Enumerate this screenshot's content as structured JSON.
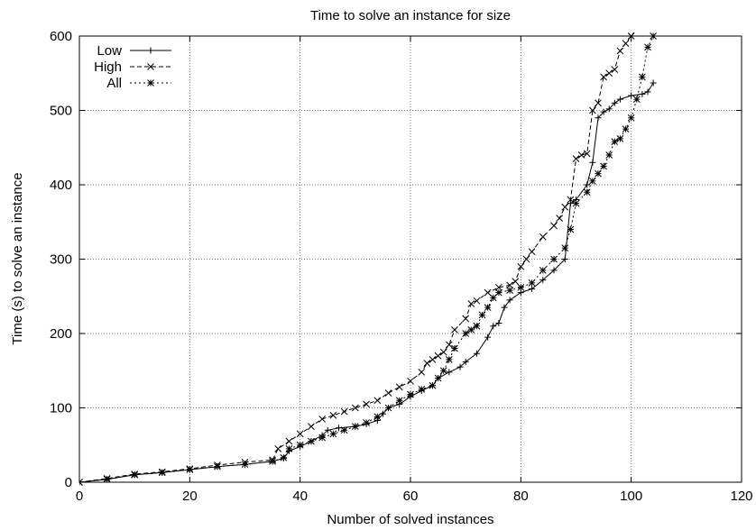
{
  "chart_data": {
    "type": "line",
    "title": "Time to solve an instance for size",
    "xlabel": "Number of solved instances",
    "ylabel": "Time (s) to solve an instance",
    "xlim": [
      0,
      120
    ],
    "ylim": [
      0,
      600
    ],
    "xticks": [
      0,
      20,
      40,
      60,
      80,
      100,
      120
    ],
    "yticks": [
      0,
      100,
      200,
      300,
      400,
      500,
      600
    ],
    "grid": true,
    "legend_position": "top-left",
    "series": [
      {
        "name": "Low",
        "marker": "plus",
        "dash": "solid",
        "points": [
          [
            0,
            0
          ],
          [
            5,
            4
          ],
          [
            10,
            10
          ],
          [
            15,
            13
          ],
          [
            20,
            17
          ],
          [
            25,
            21
          ],
          [
            30,
            24
          ],
          [
            35,
            28
          ],
          [
            37,
            32
          ],
          [
            38,
            42
          ],
          [
            40,
            48
          ],
          [
            42,
            55
          ],
          [
            44,
            63
          ],
          [
            45,
            70
          ],
          [
            47,
            73
          ],
          [
            50,
            75
          ],
          [
            52,
            78
          ],
          [
            54,
            83
          ],
          [
            55,
            92
          ],
          [
            56,
            100
          ],
          [
            58,
            105
          ],
          [
            60,
            115
          ],
          [
            62,
            123
          ],
          [
            64,
            130
          ],
          [
            65,
            140
          ],
          [
            67,
            148
          ],
          [
            69,
            155
          ],
          [
            70,
            162
          ],
          [
            72,
            173
          ],
          [
            74,
            195
          ],
          [
            75,
            210
          ],
          [
            76,
            214
          ],
          [
            77,
            235
          ],
          [
            78,
            245
          ],
          [
            80,
            255
          ],
          [
            82,
            260
          ],
          [
            84,
            272
          ],
          [
            86,
            285
          ],
          [
            88,
            300
          ],
          [
            89,
            375
          ],
          [
            90,
            380
          ],
          [
            92,
            400
          ],
          [
            93,
            430
          ],
          [
            94,
            490
          ],
          [
            95,
            498
          ],
          [
            96,
            502
          ],
          [
            97,
            510
          ],
          [
            98,
            515
          ],
          [
            100,
            520
          ],
          [
            102,
            522
          ],
          [
            103,
            525
          ],
          [
            104,
            537
          ]
        ]
      },
      {
        "name": "High",
        "marker": "cross",
        "dash": "dashed",
        "points": [
          [
            0,
            0
          ],
          [
            5,
            5
          ],
          [
            10,
            11
          ],
          [
            15,
            14
          ],
          [
            20,
            18
          ],
          [
            25,
            23
          ],
          [
            30,
            27
          ],
          [
            35,
            30
          ],
          [
            36,
            45
          ],
          [
            38,
            55
          ],
          [
            40,
            65
          ],
          [
            42,
            75
          ],
          [
            44,
            85
          ],
          [
            46,
            90
          ],
          [
            48,
            95
          ],
          [
            50,
            100
          ],
          [
            52,
            105
          ],
          [
            54,
            110
          ],
          [
            56,
            120
          ],
          [
            58,
            128
          ],
          [
            60,
            136
          ],
          [
            62,
            148
          ],
          [
            63,
            160
          ],
          [
            64,
            165
          ],
          [
            65,
            170
          ],
          [
            66,
            175
          ],
          [
            67,
            185
          ],
          [
            68,
            205
          ],
          [
            70,
            220
          ],
          [
            71,
            240
          ],
          [
            72,
            244
          ],
          [
            74,
            255
          ],
          [
            76,
            262
          ],
          [
            78,
            265
          ],
          [
            79,
            270
          ],
          [
            80,
            290
          ],
          [
            81,
            300
          ],
          [
            82,
            310
          ],
          [
            84,
            330
          ],
          [
            86,
            345
          ],
          [
            87,
            355
          ],
          [
            88,
            370
          ],
          [
            89,
            380
          ],
          [
            90,
            435
          ],
          [
            91,
            440
          ],
          [
            92,
            442
          ],
          [
            93,
            500
          ],
          [
            94,
            510
          ],
          [
            95,
            545
          ],
          [
            96,
            550
          ],
          [
            97,
            555
          ],
          [
            98,
            580
          ],
          [
            99,
            590
          ],
          [
            100,
            600
          ],
          [
            101,
            610
          ]
        ]
      },
      {
        "name": "All",
        "marker": "star",
        "dash": "dotted",
        "points": [
          [
            0,
            0
          ],
          [
            5,
            4
          ],
          [
            10,
            10
          ],
          [
            15,
            13
          ],
          [
            20,
            17
          ],
          [
            25,
            21
          ],
          [
            30,
            24
          ],
          [
            35,
            28
          ],
          [
            37,
            33
          ],
          [
            38,
            45
          ],
          [
            40,
            50
          ],
          [
            42,
            55
          ],
          [
            44,
            60
          ],
          [
            46,
            65
          ],
          [
            48,
            70
          ],
          [
            50,
            75
          ],
          [
            52,
            80
          ],
          [
            54,
            88
          ],
          [
            56,
            100
          ],
          [
            58,
            110
          ],
          [
            60,
            118
          ],
          [
            62,
            125
          ],
          [
            64,
            130
          ],
          [
            65,
            140
          ],
          [
            66,
            150
          ],
          [
            67,
            165
          ],
          [
            68,
            180
          ],
          [
            70,
            200
          ],
          [
            71,
            205
          ],
          [
            72,
            210
          ],
          [
            73,
            225
          ],
          [
            74,
            235
          ],
          [
            75,
            248
          ],
          [
            76,
            255
          ],
          [
            78,
            258
          ],
          [
            80,
            262
          ],
          [
            82,
            268
          ],
          [
            84,
            285
          ],
          [
            86,
            300
          ],
          [
            88,
            315
          ],
          [
            89,
            340
          ],
          [
            90,
            375
          ],
          [
            92,
            390
          ],
          [
            93,
            405
          ],
          [
            94,
            415
          ],
          [
            95,
            425
          ],
          [
            96,
            440
          ],
          [
            97,
            458
          ],
          [
            98,
            462
          ],
          [
            99,
            475
          ],
          [
            100,
            490
          ],
          [
            101,
            515
          ],
          [
            102,
            545
          ],
          [
            103,
            585
          ],
          [
            104,
            600
          ]
        ]
      }
    ]
  }
}
